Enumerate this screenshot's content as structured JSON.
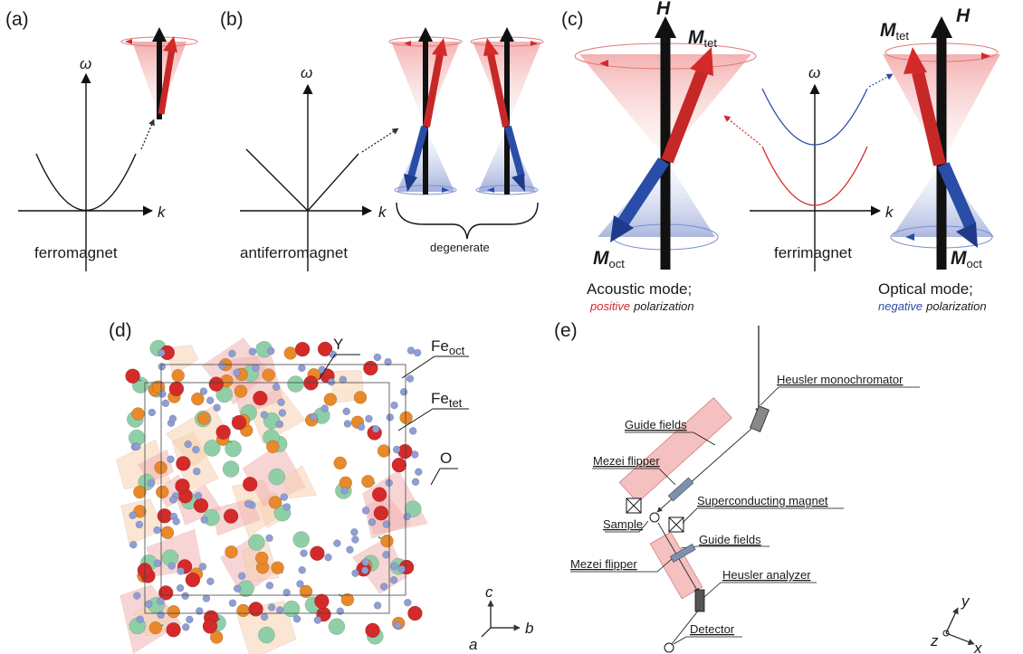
{
  "panel_labels": {
    "a": "(a)",
    "b": "(b)",
    "c": "(c)",
    "d": "(d)",
    "e": "(e)"
  },
  "axes": {
    "omega": "ω",
    "k": "k"
  },
  "panel_a": {
    "caption": "ferromagnet"
  },
  "panel_b": {
    "caption": "antiferromagnet",
    "brace_label": "degenerate"
  },
  "panel_c": {
    "H": "H",
    "M": "M",
    "tet": "tet",
    "oct": "oct",
    "caption": "ferrimagnet",
    "acoustic_title": "Acoustic mode;",
    "acoustic_word": "positive",
    "optical_title": "Optical mode;",
    "optical_word": "negative",
    "polarization": "polarization"
  },
  "panel_d": {
    "Y": "Y",
    "Fe": "Fe",
    "oct": "oct",
    "tet": "tet",
    "O": "O",
    "axis_c": "c",
    "axis_a": "a",
    "axis_b": "b"
  },
  "panel_e": {
    "monochromator": "Heusler monochromator",
    "guide_fields_1": "Guide fields",
    "mezei_flipper_1": "Mezei flipper",
    "superconducting_magnet": "Superconducting magnet",
    "sample": "Sample",
    "guide_fields_2": "Guide fields",
    "mezei_flipper_2": "Mezei flipper",
    "analyzer": "Heusler analyzer",
    "detector": "Detector",
    "axis_y": "y",
    "axis_z": "z",
    "axis_x": "x"
  },
  "colors": {
    "red": "#d42a2a",
    "blue": "#2a4da8",
    "pink": "#f2b3b3",
    "orange": "#e8892b",
    "green": "#8fcfa8",
    "oxygen": "#8f9ed4"
  }
}
